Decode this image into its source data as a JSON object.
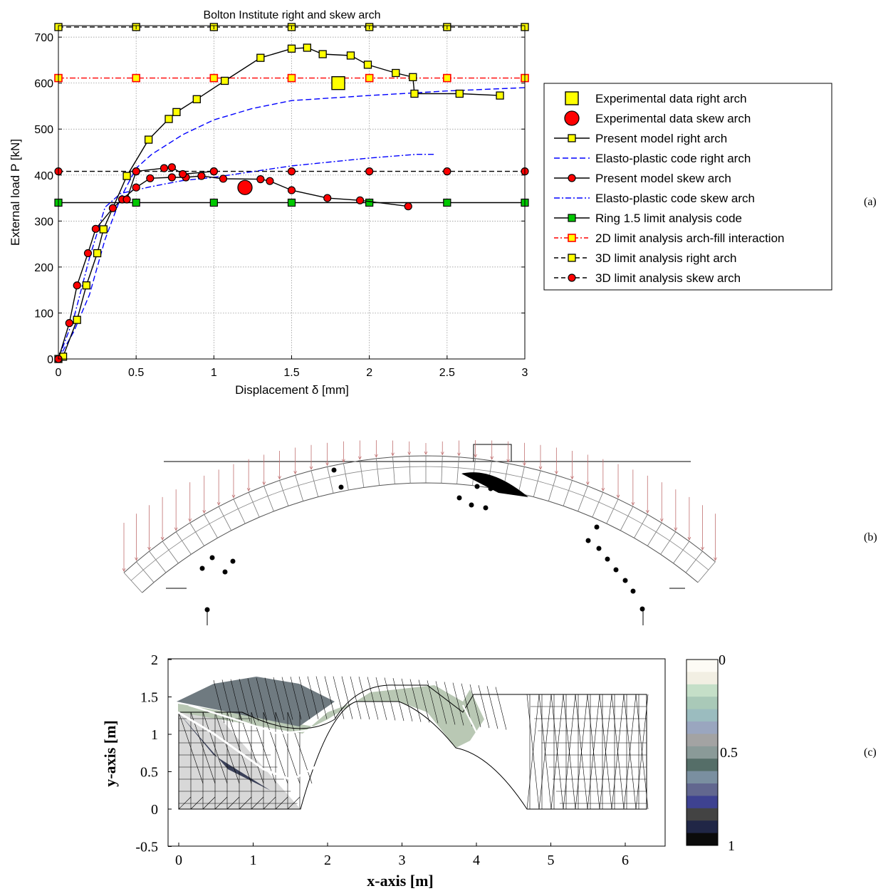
{
  "panel_labels": {
    "a": "(a)",
    "b": "(b)",
    "c": "(c)"
  },
  "colors": {
    "yellow": "#ffff00",
    "red": "#ff0000",
    "green": "#00c800",
    "blue": "#0000ff",
    "black": "#000000"
  },
  "chart_data": {
    "type": "line",
    "title": "Bolton Institute right and skew arch",
    "xlabel": "Displacement δ [mm]",
    "ylabel": "External load P [kN]",
    "xlim": [
      0,
      3
    ],
    "ylim": [
      0,
      725
    ],
    "xticks": [
      "0",
      "0.5",
      "1",
      "1.5",
      "2",
      "2.5",
      "3"
    ],
    "yticks": [
      "0",
      "100",
      "200",
      "300",
      "400",
      "500",
      "600",
      "700"
    ],
    "grid": true,
    "legend_position": "outside-right",
    "series": [
      {
        "name": "Experimental data right arch",
        "style": "exp-square",
        "color": "#ffff00",
        "points": [
          [
            1.8,
            600
          ]
        ]
      },
      {
        "name": "Experimental data skew arch",
        "style": "exp-circle",
        "color": "#ff0000",
        "points": [
          [
            1.2,
            373
          ]
        ]
      },
      {
        "name": "Present model right arch",
        "style": "line-square",
        "color": "#ffff00",
        "points": [
          [
            0,
            0
          ],
          [
            0.03,
            5
          ],
          [
            0.12,
            85
          ],
          [
            0.18,
            160
          ],
          [
            0.25,
            230
          ],
          [
            0.29,
            282
          ],
          [
            0.44,
            398
          ],
          [
            0.58,
            477
          ],
          [
            0.71,
            522
          ],
          [
            0.76,
            537
          ],
          [
            0.89,
            565
          ],
          [
            1.07,
            605
          ],
          [
            1.3,
            655
          ],
          [
            1.5,
            675
          ],
          [
            1.6,
            677
          ],
          [
            1.7,
            663
          ],
          [
            1.88,
            660
          ],
          [
            1.99,
            640
          ],
          [
            2.17,
            622
          ],
          [
            2.28,
            613
          ],
          [
            2.29,
            577
          ],
          [
            2.58,
            577
          ],
          [
            2.84,
            573
          ]
        ]
      },
      {
        "name": "Elasto-plastic code right arch",
        "style": "dash",
        "color": "#0000ff",
        "points": [
          [
            0,
            0
          ],
          [
            0.1,
            60
          ],
          [
            0.2,
            140
          ],
          [
            0.3,
            260
          ],
          [
            0.4,
            350
          ],
          [
            0.5,
            415
          ],
          [
            0.6,
            445
          ],
          [
            0.8,
            488
          ],
          [
            1.0,
            520
          ],
          [
            1.25,
            545
          ],
          [
            1.5,
            562
          ],
          [
            2.0,
            573
          ],
          [
            2.5,
            583
          ],
          [
            3.0,
            590
          ]
        ]
      },
      {
        "name": "Present model skew arch",
        "style": "line-circle",
        "color": "#ff0000",
        "points": [
          [
            0,
            0
          ],
          [
            0.07,
            78
          ],
          [
            0.12,
            160
          ],
          [
            0.19,
            230
          ],
          [
            0.24,
            283
          ],
          [
            0.35,
            328
          ],
          [
            0.41,
            347
          ],
          [
            0.5,
            373
          ],
          [
            0.59,
            393
          ],
          [
            0.73,
            395
          ],
          [
            0.82,
            395
          ],
          [
            0.92,
            398
          ],
          [
            1.06,
            392
          ],
          [
            1.3,
            391
          ],
          [
            1.36,
            387
          ],
          [
            1.5,
            367
          ],
          [
            1.73,
            350
          ],
          [
            1.94,
            345
          ],
          [
            2.25,
            332
          ]
        ]
      },
      {
        "name": "Present model skew arch peak",
        "style": "line-circle",
        "color": "#ff0000",
        "points": [
          [
            0.44,
            347
          ],
          [
            0.5,
            408
          ],
          [
            0.68,
            415
          ],
          [
            0.73,
            417
          ],
          [
            0.8,
            402
          ],
          [
            1.0,
            408
          ]
        ]
      },
      {
        "name": "Elasto-plastic code skew arch",
        "style": "dashdot",
        "color": "#0000ff",
        "points": [
          [
            0,
            0
          ],
          [
            0.1,
            90
          ],
          [
            0.2,
            220
          ],
          [
            0.3,
            330
          ],
          [
            0.4,
            360
          ],
          [
            0.6,
            375
          ],
          [
            0.8,
            388
          ],
          [
            1.0,
            395
          ],
          [
            1.5,
            420
          ],
          [
            2.0,
            437
          ],
          [
            2.3,
            445
          ],
          [
            2.42,
            445
          ]
        ]
      },
      {
        "name": "Ring 1.5 limit analysis code",
        "style": "line-square",
        "color": "#00c800",
        "points": [
          [
            0,
            340
          ],
          [
            0.5,
            340
          ],
          [
            1,
            340
          ],
          [
            1.5,
            340
          ],
          [
            2,
            340
          ],
          [
            2.5,
            340
          ],
          [
            3,
            340
          ]
        ]
      },
      {
        "name": "2D limit analysis arch-fill interaction",
        "style": "red-dashdot-square",
        "color": "#ffff00",
        "points": [
          [
            0,
            611
          ],
          [
            0.5,
            611
          ],
          [
            1,
            611
          ],
          [
            1.5,
            611
          ],
          [
            2,
            611
          ],
          [
            2.5,
            611
          ],
          [
            3,
            611
          ]
        ]
      },
      {
        "name": "3D limit analysis right arch",
        "style": "dash-square",
        "color": "#ffff00",
        "points": [
          [
            0,
            722
          ],
          [
            0.5,
            722
          ],
          [
            1,
            722
          ],
          [
            1.5,
            722
          ],
          [
            2,
            722
          ],
          [
            2.5,
            722
          ],
          [
            3,
            722
          ]
        ]
      },
      {
        "name": "3D limit analysis skew arch",
        "style": "dash-circle",
        "color": "#ff0000",
        "points": [
          [
            0,
            408
          ],
          [
            0.5,
            408
          ],
          [
            1,
            408
          ],
          [
            1.5,
            408
          ],
          [
            2,
            408
          ],
          [
            2.5,
            408
          ],
          [
            3,
            408
          ]
        ]
      }
    ],
    "legend": [
      "Experimental data right arch",
      "Experimental data skew arch",
      "Present model right arch",
      "Elasto-plastic code right arch",
      "Present model skew arch",
      "Elasto-plastic code skew arch",
      "Ring 1.5 limit analysis code",
      "2D limit analysis arch-fill interaction",
      "3D limit analysis right arch",
      "3D limit analysis skew arch"
    ]
  },
  "mesh_plot": {
    "xlabel": "x-axis [m]",
    "ylabel": "y-axis [m]",
    "xticks": [
      "0",
      "1",
      "2",
      "3",
      "4",
      "5",
      "6"
    ],
    "yticks": [
      "-0.5",
      "0",
      "0.5",
      "1",
      "1.5",
      "2"
    ],
    "colorbar_labels": [
      "0",
      "0.5",
      "1"
    ]
  }
}
